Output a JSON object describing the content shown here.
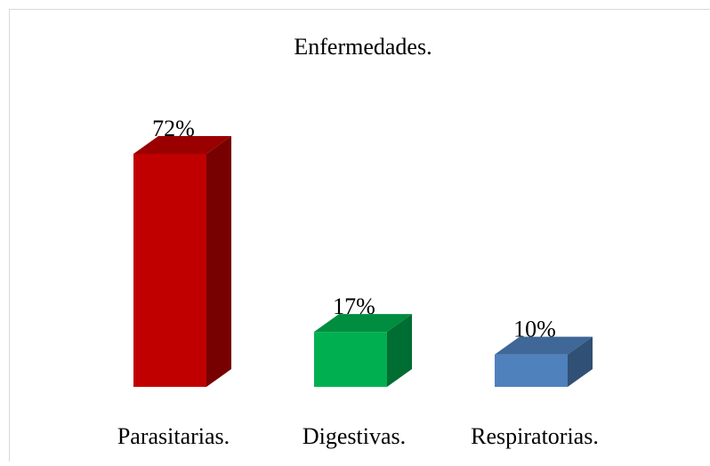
{
  "chart_data": {
    "type": "bar3d",
    "title": "Enfermedades.",
    "categories": [
      "Parasitarias.",
      "Digestivas.",
      "Respiratorias."
    ],
    "values": [
      72,
      17,
      10
    ],
    "value_labels": [
      "72%",
      "17%",
      "10%"
    ],
    "colors": [
      "#c00000",
      "#00b050",
      "#4f81bd"
    ]
  }
}
